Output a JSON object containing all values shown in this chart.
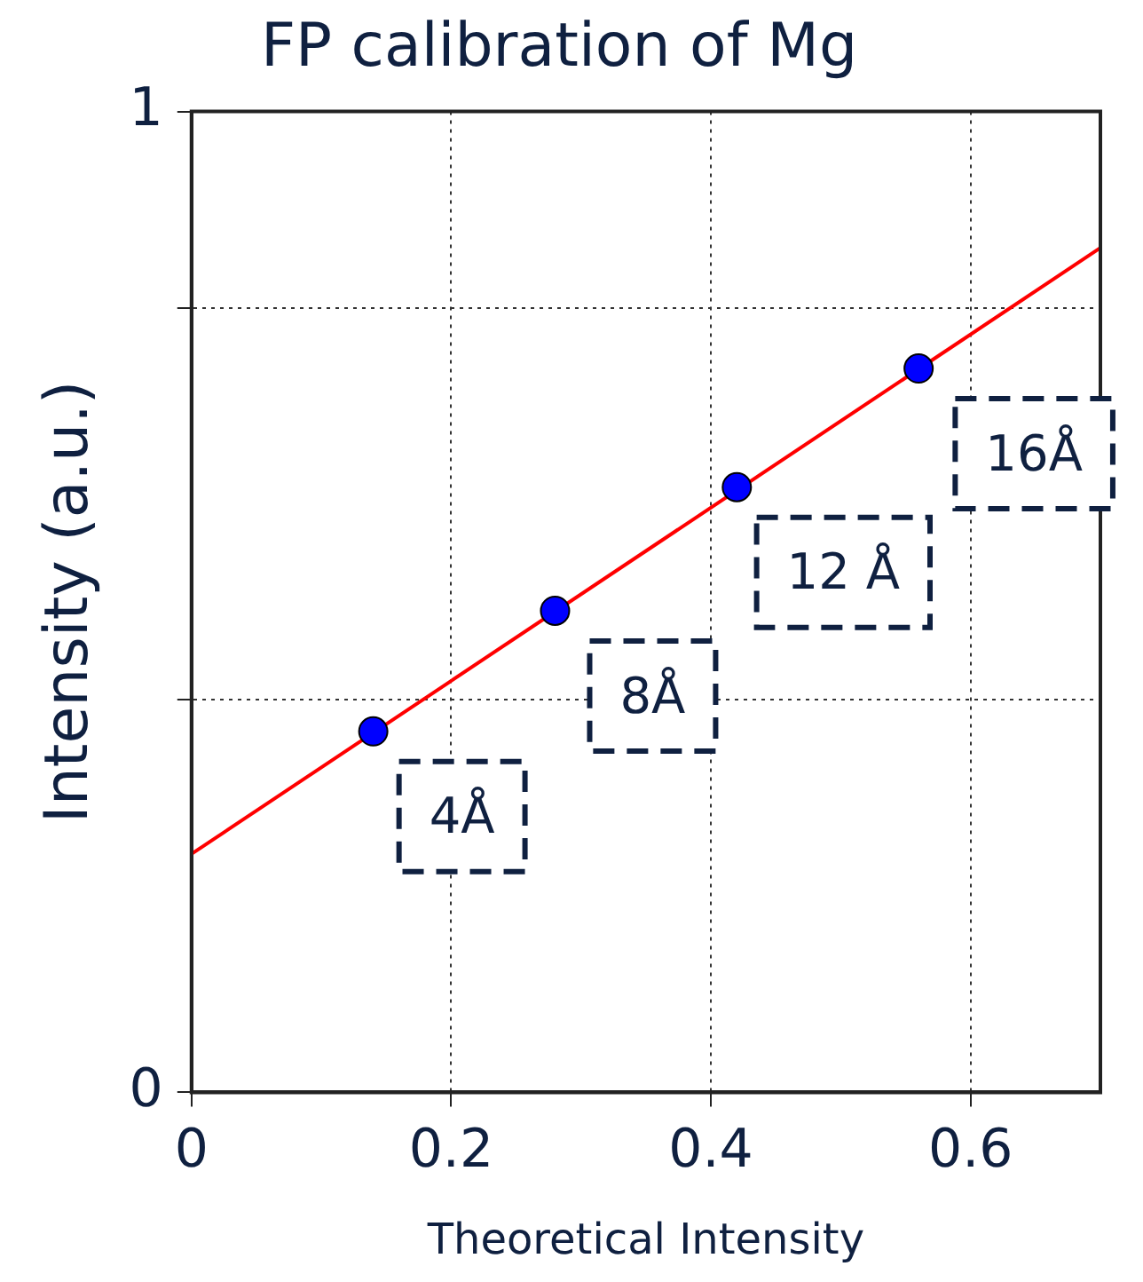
{
  "chart_data": {
    "type": "scatter",
    "title": "FP calibration of Mg",
    "xlabel": "Theoretical Intensity",
    "ylabel": "Intensity (a.u.)",
    "x": [
      0.14,
      0.28,
      0.42,
      0.56
    ],
    "series": [
      {
        "color": "#0000ff",
        "values": [
          0.368,
          0.491,
          0.617,
          0.738
        ],
        "marker": "circle"
      },
      {
        "type": "line",
        "color": "#ff0000",
        "x": [
          0,
          0.7
        ],
        "values": [
          0.243,
          0.861
        ],
        "marker": "none"
      }
    ],
    "xlim": [
      0,
      0.7
    ],
    "xticks": [
      0,
      0.2,
      0.4,
      0.6
    ],
    "ylim": [
      0,
      1
    ],
    "yticks": [
      0,
      {
        "value": 0.4,
        "label": null
      },
      {
        "value": 0.8,
        "label": null
      },
      1
    ],
    "grid": true,
    "legend": false,
    "annotations": [
      "4Å",
      "8Å",
      "12 Å",
      "16Å"
    ]
  }
}
